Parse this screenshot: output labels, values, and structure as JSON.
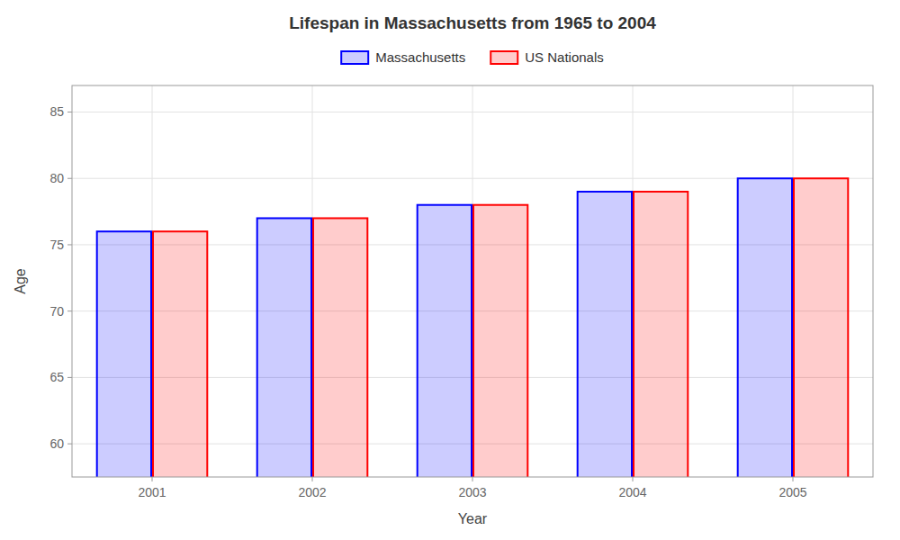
{
  "chart_data": {
    "type": "bar",
    "title": "Lifespan in Massachusetts from 1965 to 2004",
    "xlabel": "Year",
    "ylabel": "Age",
    "categories": [
      "2001",
      "2002",
      "2003",
      "2004",
      "2005"
    ],
    "series": [
      {
        "name": "Massachusetts",
        "color": "#0000ff",
        "values": [
          76,
          77,
          78,
          79,
          80
        ]
      },
      {
        "name": "US Nationals",
        "color": "#ff0000",
        "values": [
          76,
          77,
          78,
          79,
          80
        ]
      }
    ],
    "ylim": [
      57.5,
      87
    ],
    "yticks": [
      60,
      65,
      70,
      75,
      80,
      85
    ],
    "grid": true,
    "legend": "top"
  }
}
